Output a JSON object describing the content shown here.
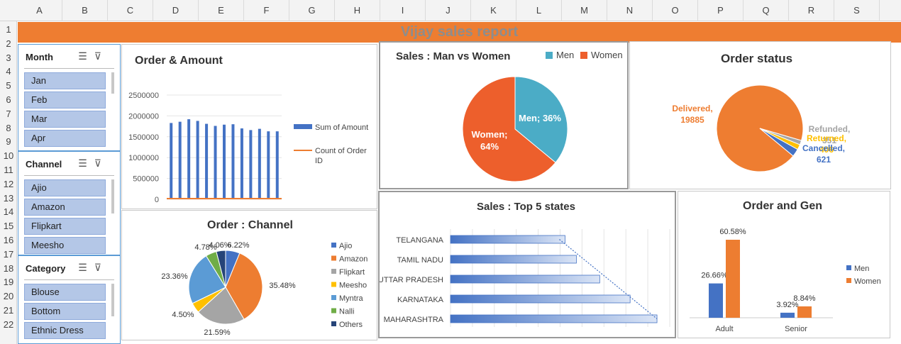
{
  "columns": [
    "A",
    "B",
    "C",
    "D",
    "E",
    "F",
    "G",
    "H",
    "I",
    "J",
    "K",
    "L",
    "M",
    "N",
    "O",
    "P",
    "Q",
    "R",
    "S"
  ],
  "rows": [
    "1",
    "2",
    "3",
    "4",
    "5",
    "6",
    "7",
    "8",
    "9",
    "10",
    "11",
    "12",
    "13",
    "14",
    "15",
    "16",
    "17",
    "18",
    "19",
    "20",
    "21",
    "22"
  ],
  "banner": {
    "title": "Vijay sales report"
  },
  "slicers": {
    "month": {
      "title": "Month",
      "items": [
        "Jan",
        "Feb",
        "Mar",
        "Apr"
      ]
    },
    "channel": {
      "title": "Channel",
      "items": [
        "Ajio",
        "Amazon",
        "Flipkart",
        "Meesho"
      ]
    },
    "category": {
      "title": "Category",
      "items": [
        "Blouse",
        "Bottom",
        "Ethnic Dress"
      ]
    }
  },
  "chart_data": [
    {
      "type": "bar",
      "title": "Order & Amount",
      "series": [
        {
          "name": "Sum of Amount",
          "color": "#4472c4",
          "values": [
            1830000,
            1860000,
            1920000,
            1880000,
            1810000,
            1760000,
            1790000,
            1800000,
            1700000,
            1660000,
            1690000,
            1630000,
            1630000
          ]
        },
        {
          "name": "Count of Order ID",
          "color": "#ed7d31",
          "values": [
            0,
            0,
            0,
            0,
            0,
            0,
            0,
            0,
            0,
            0,
            0,
            0,
            0
          ]
        }
      ],
      "yticks": [
        "2500000",
        "2000000",
        "1500000",
        "1000000",
        "500000",
        "0"
      ],
      "ylim": [
        0,
        2500000
      ]
    },
    {
      "type": "pie",
      "title": "Sales : Man vs Women",
      "series": [
        {
          "name": "Men",
          "value": 36,
          "color": "#4bacc6",
          "label": "Men; 36%"
        },
        {
          "name": "Women",
          "value": 64,
          "color": "#ed5f2c",
          "label": "Women;",
          "label2": "64%"
        }
      ]
    },
    {
      "type": "pie",
      "title": "Order status",
      "series": [
        {
          "name": "Delivered",
          "value": 19885,
          "color": "#ee7d31",
          "label": "Delivered,",
          "label2": "19885"
        },
        {
          "name": "Refunded",
          "value": 351,
          "color": "#a5a5a5",
          "label": "Refunded,",
          "label2": "351"
        },
        {
          "name": "Returned",
          "value": 406,
          "color": "#ffc000",
          "label": "Returned,",
          "label2": "406"
        },
        {
          "name": "Cancelled",
          "value": 621,
          "color": "#4472c4",
          "label": "Cancelled,",
          "label2": "621"
        }
      ]
    },
    {
      "type": "pie",
      "title": "Order : Channel",
      "series": [
        {
          "name": "Ajio",
          "value": 6.22,
          "color": "#4472c4",
          "label": "6.22%"
        },
        {
          "name": "Amazon",
          "value": 35.48,
          "color": "#ed7d31",
          "label": "35.48%"
        },
        {
          "name": "Flipkart",
          "value": 21.59,
          "color": "#a5a5a5",
          "label": "21.59%"
        },
        {
          "name": "Meesho",
          "value": 4.5,
          "color": "#ffc000",
          "label": "4.50%"
        },
        {
          "name": "Myntra",
          "value": 23.36,
          "color": "#5b9bd5",
          "label": "23.36%"
        },
        {
          "name": "Nalli",
          "value": 4.78,
          "color": "#70ad47",
          "label": "4.78%"
        },
        {
          "name": "Others",
          "value": 4.06,
          "color": "#264478",
          "label": "4.06%"
        }
      ]
    },
    {
      "type": "bar",
      "title": "Sales : Top 5 states",
      "orientation": "horizontal",
      "categories": [
        "TELANGANA",
        "TAMIL NADU",
        "UTTAR PRADESH",
        "KARNATAKA",
        "MAHARASHTRA"
      ],
      "values": [
        162,
        178,
        211,
        254,
        292
      ],
      "xlim": [
        0,
        310
      ]
    },
    {
      "type": "bar",
      "title": "Order and Gen",
      "categories": [
        "Adult",
        "Senior"
      ],
      "series": [
        {
          "name": "Men",
          "color": "#4472c4",
          "values": [
            26.66,
            3.92
          ],
          "labels": [
            "26.66%",
            "3.92%"
          ]
        },
        {
          "name": "Women",
          "color": "#ed7d31",
          "values": [
            60.58,
            8.84
          ],
          "labels": [
            "60.58%",
            "8.84%"
          ]
        }
      ]
    }
  ]
}
